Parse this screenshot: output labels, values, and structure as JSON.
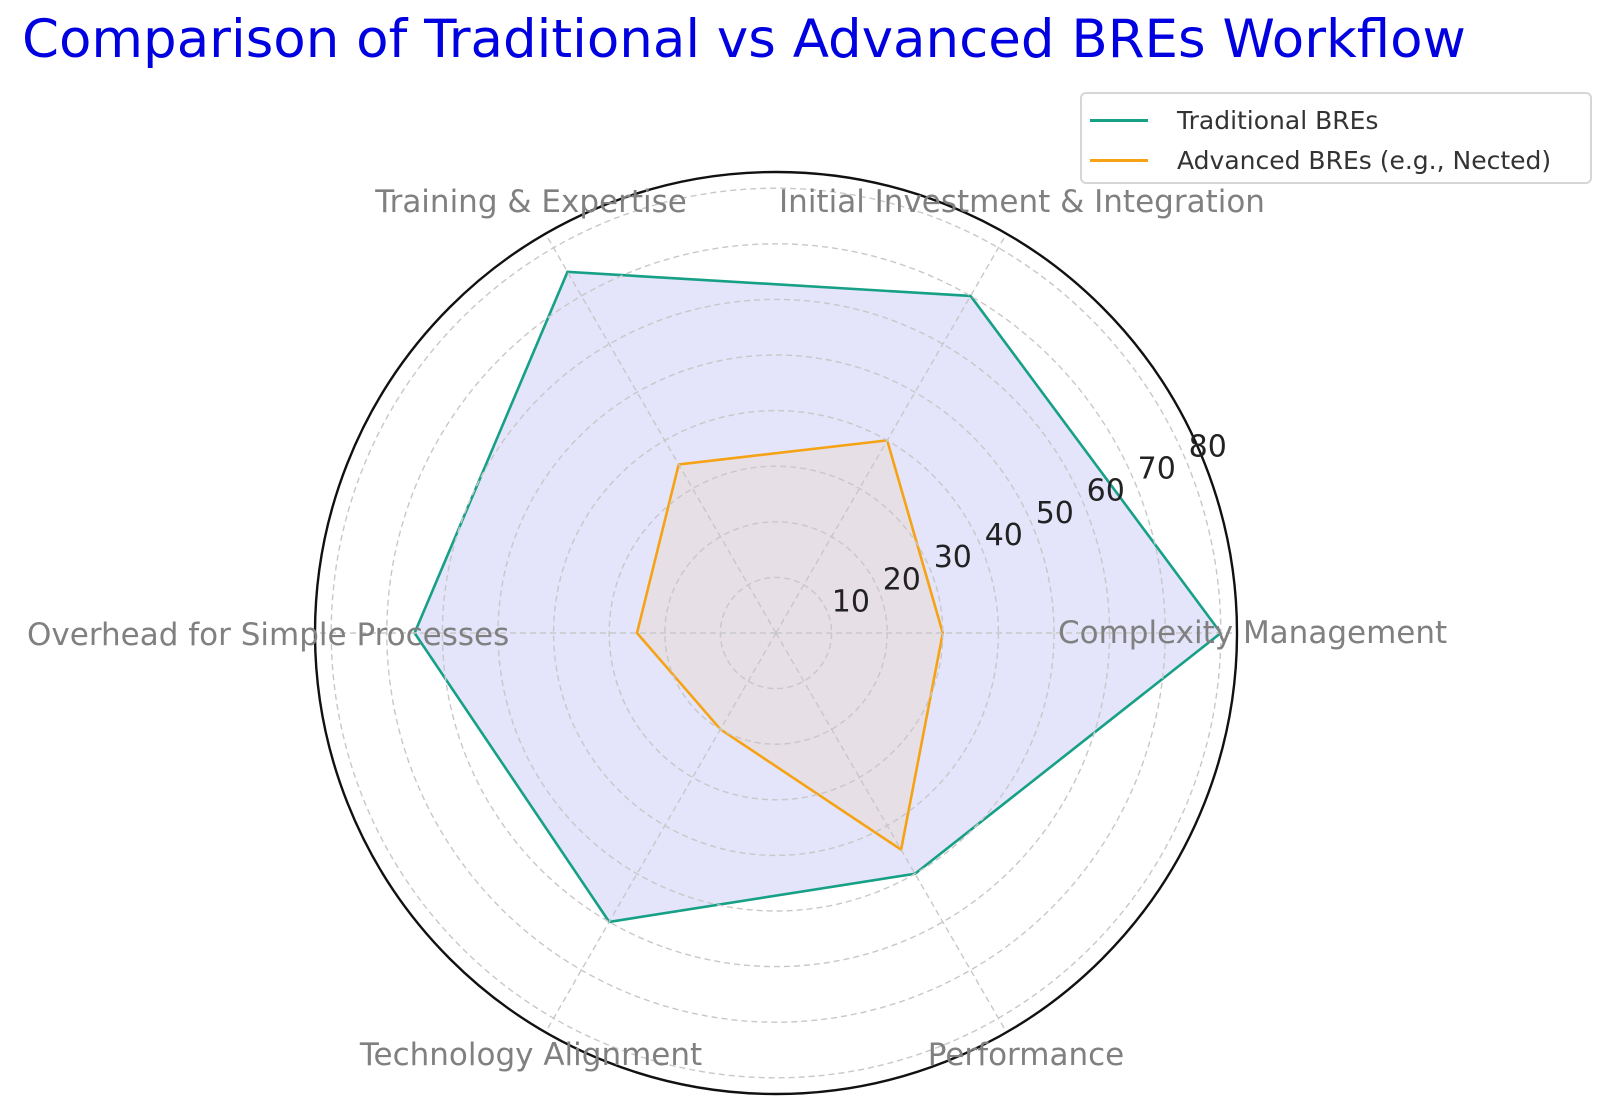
{
  "title": "Comparison of Traditional vs Advanced BREs Workflow",
  "colors": {
    "title": "#0000e0",
    "traditional_line": "#16a085",
    "traditional_fill": "#e4e4fb",
    "advanced_line": "#f5a314",
    "advanced_fill": "#e6dfe6",
    "axis_label": "#808080",
    "tick_label": "#222222",
    "grid": "#c8c8c8",
    "frame": "#111111"
  },
  "legend": {
    "items": [
      {
        "label": "Traditional BREs",
        "color": "#16a085"
      },
      {
        "label": "Advanced BREs (e.g., Nected)",
        "color": "#f5a314"
      }
    ]
  },
  "chart_data": {
    "type": "radar",
    "title": "Comparison of Traditional vs Advanced BREs Workflow",
    "categories": [
      "Complexity Management",
      "Initial Investment & Integration",
      "Training & Expertise",
      "Overhead for Simple Processes",
      "Technology Alignment",
      "Performance"
    ],
    "series": [
      {
        "name": "Traditional BREs",
        "values": [
          80,
          70,
          75,
          65,
          60,
          50
        ]
      },
      {
        "name": "Advanced BREs (e.g., Nected)",
        "values": [
          30,
          40,
          35,
          25,
          20,
          45
        ]
      }
    ],
    "radial_ticks": [
      10,
      20,
      30,
      40,
      50,
      60,
      70,
      80
    ],
    "rlim": [
      0,
      83
    ],
    "grid": true,
    "legend_position": "upper right"
  }
}
